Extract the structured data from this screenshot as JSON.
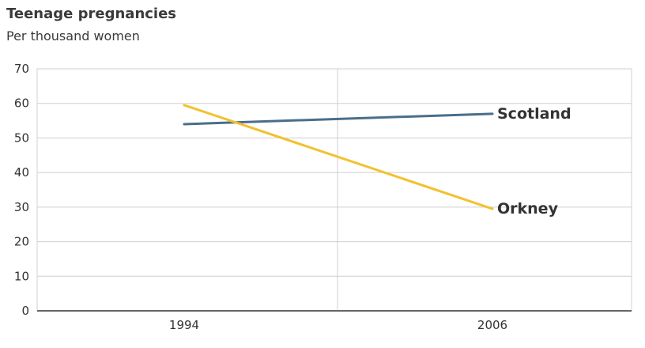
{
  "title": "Teenage pregnancies",
  "subtitle": "Per thousand women",
  "chart_data": {
    "type": "line",
    "title": "Teenage pregnancies",
    "subtitle": "Per thousand women",
    "x": [
      "1994",
      "2006"
    ],
    "ylim": [
      0,
      70
    ],
    "yticks": [
      0,
      10,
      20,
      30,
      40,
      50,
      60,
      70
    ],
    "grid": true,
    "series": [
      {
        "name": "Scotland",
        "values": [
          54,
          57
        ],
        "color": "#4a6e8a"
      },
      {
        "name": "Orkney",
        "values": [
          59.5,
          29.5
        ],
        "color": "#f2c12e"
      }
    ]
  }
}
